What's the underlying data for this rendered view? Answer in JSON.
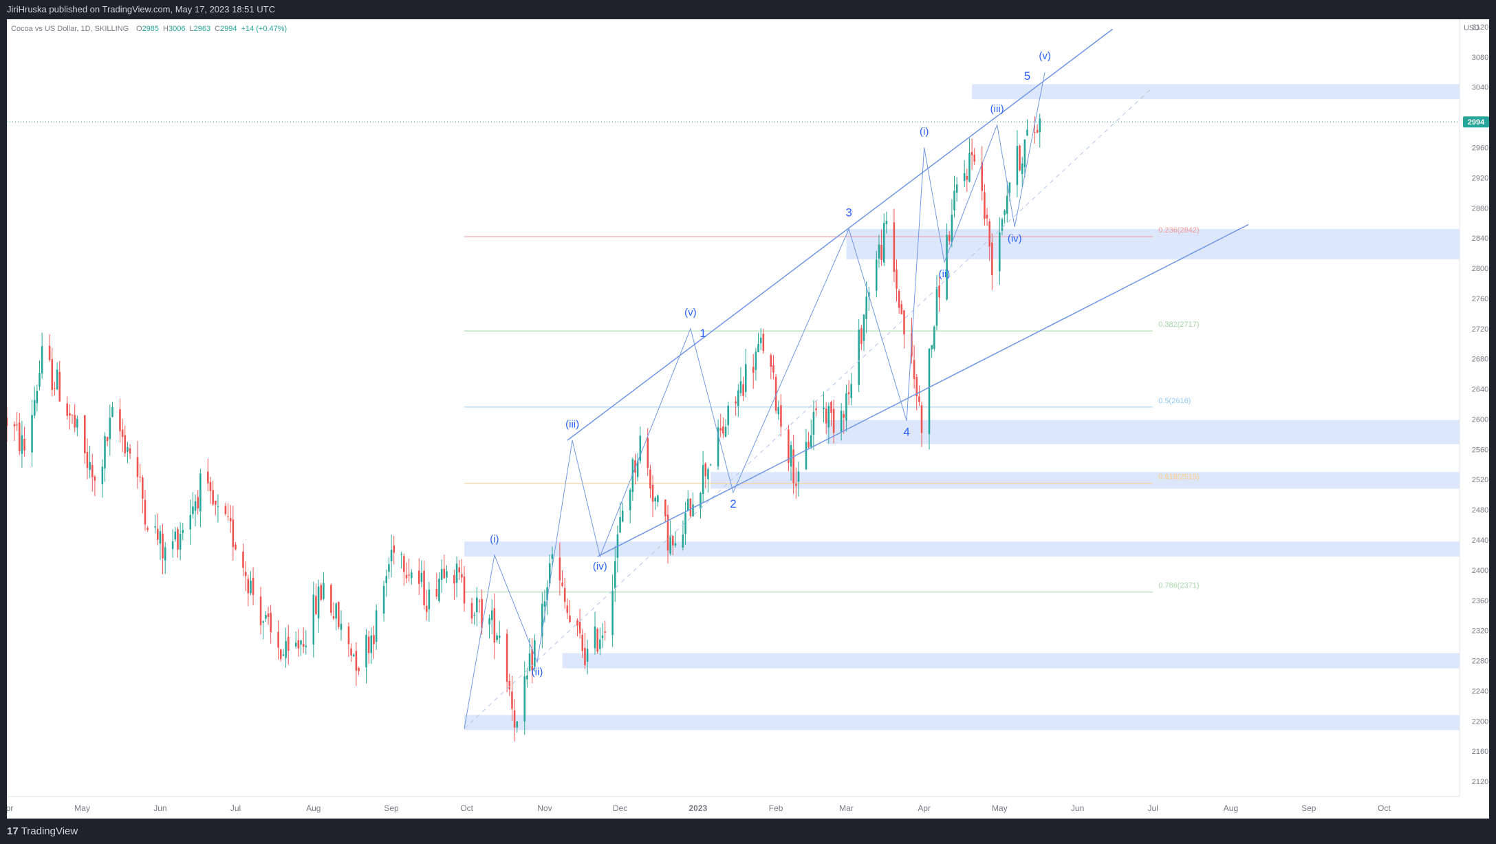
{
  "header": {
    "published_line": "JiriHruska published on TradingView.com, May 17, 2023 18:51 UTC"
  },
  "footer": {
    "logo_mark": "17",
    "logo_text": "TradingView"
  },
  "colors": {
    "background": "#ffffff",
    "up": "#26a69a",
    "down": "#ef5350",
    "wave_lines": "#6f96e6",
    "wave_labels": "#2962ff",
    "zone_fill": "#dde7fb",
    "price_tag": "#26a69a"
  },
  "chart_data": {
    "type": "candlestick",
    "symbol_line": {
      "symbol": "Cocoa vs US Dollar, 1D, SKILLING",
      "open_label": "O",
      "open": "2985",
      "high_label": "H",
      "high": "3006",
      "low_label": "L",
      "low": "2963",
      "close_label": "C",
      "close": "2994",
      "change": "+14 (+0.47%)"
    },
    "currency": "USD",
    "last_price": 2994,
    "last_price_label": "2994",
    "y_axis": {
      "min": 2100,
      "max": 3130,
      "ticks": [
        3120,
        3080,
        3040,
        2960,
        2920,
        2880,
        2840,
        2800,
        2760,
        2720,
        2680,
        2640,
        2600,
        2560,
        2520,
        2480,
        2440,
        2400,
        2360,
        2320,
        2280,
        2240,
        2200,
        2160,
        2120
      ]
    },
    "x_axis": {
      "start": "2022-04-01",
      "end": "2023-10-31",
      "ticks": [
        {
          "date": "2022-04-01",
          "label": "Apr"
        },
        {
          "date": "2022-05-01",
          "label": "May"
        },
        {
          "date": "2022-06-01",
          "label": "Jun"
        },
        {
          "date": "2022-07-01",
          "label": "Jul"
        },
        {
          "date": "2022-08-01",
          "label": "Aug"
        },
        {
          "date": "2022-09-01",
          "label": "Sep"
        },
        {
          "date": "2022-10-01",
          "label": "Oct"
        },
        {
          "date": "2022-11-01",
          "label": "Nov"
        },
        {
          "date": "2022-12-01",
          "label": "Dec"
        },
        {
          "date": "2023-01-01",
          "label": "2023"
        },
        {
          "date": "2023-02-01",
          "label": "Feb"
        },
        {
          "date": "2023-03-01",
          "label": "Mar"
        },
        {
          "date": "2023-04-01",
          "label": "Apr"
        },
        {
          "date": "2023-05-01",
          "label": "May"
        },
        {
          "date": "2023-06-01",
          "label": "Jun"
        },
        {
          "date": "2023-07-01",
          "label": "Jul"
        },
        {
          "date": "2023-08-01",
          "label": "Aug"
        },
        {
          "date": "2023-09-01",
          "label": "Sep"
        },
        {
          "date": "2023-10-01",
          "label": "Oct"
        }
      ]
    },
    "price_path": [
      {
        "date": "2022-04-01",
        "price": 2600
      },
      {
        "date": "2022-04-08",
        "price": 2560
      },
      {
        "date": "2022-04-15",
        "price": 2680
      },
      {
        "date": "2022-04-22",
        "price": 2640
      },
      {
        "date": "2022-04-29",
        "price": 2580
      },
      {
        "date": "2022-05-06",
        "price": 2510
      },
      {
        "date": "2022-05-13",
        "price": 2600
      },
      {
        "date": "2022-05-20",
        "price": 2560
      },
      {
        "date": "2022-05-27",
        "price": 2470
      },
      {
        "date": "2022-06-03",
        "price": 2420
      },
      {
        "date": "2022-06-10",
        "price": 2460
      },
      {
        "date": "2022-06-17",
        "price": 2510
      },
      {
        "date": "2022-06-24",
        "price": 2470
      },
      {
        "date": "2022-07-01",
        "price": 2440
      },
      {
        "date": "2022-07-08",
        "price": 2370
      },
      {
        "date": "2022-07-15",
        "price": 2310
      },
      {
        "date": "2022-07-22",
        "price": 2280
      },
      {
        "date": "2022-07-29",
        "price": 2320
      },
      {
        "date": "2022-08-05",
        "price": 2380
      },
      {
        "date": "2022-08-12",
        "price": 2320
      },
      {
        "date": "2022-08-19",
        "price": 2280
      },
      {
        "date": "2022-08-26",
        "price": 2330
      },
      {
        "date": "2022-09-02",
        "price": 2440
      },
      {
        "date": "2022-09-09",
        "price": 2400
      },
      {
        "date": "2022-09-16",
        "price": 2360
      },
      {
        "date": "2022-09-23",
        "price": 2420
      },
      {
        "date": "2022-09-30",
        "price": 2370
      },
      {
        "date": "2022-10-07",
        "price": 2340
      },
      {
        "date": "2022-10-14",
        "price": 2320
      },
      {
        "date": "2022-10-21",
        "price": 2190
      },
      {
        "date": "2022-10-28",
        "price": 2300
      },
      {
        "date": "2022-11-04",
        "price": 2415
      },
      {
        "date": "2022-11-11",
        "price": 2330
      },
      {
        "date": "2022-11-18",
        "price": 2285
      },
      {
        "date": "2022-11-25",
        "price": 2330
      },
      {
        "date": "2022-12-02",
        "price": 2480
      },
      {
        "date": "2022-12-09",
        "price": 2570
      },
      {
        "date": "2022-12-16",
        "price": 2480
      },
      {
        "date": "2022-12-23",
        "price": 2420
      },
      {
        "date": "2022-12-30",
        "price": 2500
      },
      {
        "date": "2023-01-06",
        "price": 2550
      },
      {
        "date": "2023-01-13",
        "price": 2600
      },
      {
        "date": "2023-01-20",
        "price": 2660
      },
      {
        "date": "2023-01-27",
        "price": 2700
      },
      {
        "date": "2023-02-03",
        "price": 2600
      },
      {
        "date": "2023-02-10",
        "price": 2510
      },
      {
        "date": "2023-02-17",
        "price": 2620
      },
      {
        "date": "2023-02-24",
        "price": 2600
      },
      {
        "date": "2023-03-03",
        "price": 2640
      },
      {
        "date": "2023-03-10",
        "price": 2780
      },
      {
        "date": "2023-03-17",
        "price": 2850
      },
      {
        "date": "2023-03-24",
        "price": 2720
      },
      {
        "date": "2023-03-31",
        "price": 2600
      },
      {
        "date": "2023-04-07",
        "price": 2780
      },
      {
        "date": "2023-04-14",
        "price": 2900
      },
      {
        "date": "2023-04-21",
        "price": 2960
      },
      {
        "date": "2023-04-28",
        "price": 2810
      },
      {
        "date": "2023-05-05",
        "price": 2920
      },
      {
        "date": "2023-05-12",
        "price": 2970
      },
      {
        "date": "2023-05-17",
        "price": 2994
      }
    ],
    "zones": [
      {
        "date_from": "2023-04-20",
        "date_to": "2023-10-31",
        "low": 3024,
        "high": 3044
      },
      {
        "date_from": "2023-03-01",
        "date_to": "2023-10-31",
        "low": 2812,
        "high": 2852
      },
      {
        "date_from": "2023-02-21",
        "date_to": "2023-10-31",
        "low": 2567,
        "high": 2599
      },
      {
        "date_from": "2023-01-06",
        "date_to": "2023-10-31",
        "low": 2508,
        "high": 2530
      },
      {
        "date_from": "2022-09-30",
        "date_to": "2023-10-31",
        "low": 2418,
        "high": 2438
      },
      {
        "date_from": "2022-11-08",
        "date_to": "2023-10-31",
        "low": 2270,
        "high": 2290
      },
      {
        "date_from": "2022-09-30",
        "date_to": "2023-10-31",
        "low": 2188,
        "high": 2208
      }
    ],
    "fibonacci": {
      "date_from": "2022-09-30",
      "date_to": "2023-07-01",
      "levels": [
        {
          "label": "0.236(2842)",
          "price": 2842,
          "color": "#ef9a9a"
        },
        {
          "label": "0.382(2717)",
          "price": 2717,
          "color": "#a5d6a7"
        },
        {
          "label": "0.5(2616)",
          "price": 2616,
          "color": "#90caf9"
        },
        {
          "label": "0.618(2515)",
          "price": 2515,
          "color": "#ffcc80"
        },
        {
          "label": "0.786(2371)",
          "price": 2371,
          "color": "#a5d6a7"
        }
      ]
    },
    "channel_lines": [
      {
        "from": {
          "date": "2022-11-10",
          "price": 2572
        },
        "to": {
          "date": "2023-06-15",
          "price": 3117
        }
      },
      {
        "from": {
          "date": "2022-11-22",
          "price": 2418
        },
        "to": {
          "date": "2023-08-08",
          "price": 2858
        }
      }
    ],
    "guide_line": {
      "from": {
        "date": "2022-09-30",
        "price": 2190
      },
      "to": {
        "date": "2023-07-01",
        "price": 3040
      }
    },
    "wave_path": [
      {
        "date": "2022-09-30",
        "price": 2190
      },
      {
        "date": "2022-10-12",
        "price": 2420
      },
      {
        "date": "2022-10-29",
        "price": 2278
      },
      {
        "date": "2022-11-12",
        "price": 2572
      },
      {
        "date": "2022-11-23",
        "price": 2418
      },
      {
        "date": "2022-12-29",
        "price": 2720
      },
      {
        "date": "2023-01-15",
        "price": 2503
      },
      {
        "date": "2023-03-02",
        "price": 2852
      },
      {
        "date": "2023-03-25",
        "price": 2598
      },
      {
        "date": "2023-04-01",
        "price": 2960
      },
      {
        "date": "2023-04-09",
        "price": 2808
      },
      {
        "date": "2023-04-30",
        "price": 2990
      },
      {
        "date": "2023-05-07",
        "price": 2855
      },
      {
        "date": "2023-05-19",
        "price": 3060
      }
    ],
    "wave_labels": [
      {
        "text": "(i)",
        "date": "2022-10-12",
        "price": 2437
      },
      {
        "text": "(ii)",
        "date": "2022-10-29",
        "price": 2261
      },
      {
        "text": "(iii)",
        "date": "2022-11-12",
        "price": 2589
      },
      {
        "text": "(iv)",
        "date": "2022-11-23",
        "price": 2401
      },
      {
        "text": "(v)",
        "date": "2022-12-29",
        "price": 2737
      },
      {
        "text": "1",
        "date": "2023-01-03",
        "price": 2709
      },
      {
        "text": "2",
        "date": "2023-01-15",
        "price": 2483
      },
      {
        "text": "3",
        "date": "2023-03-02",
        "price": 2869
      },
      {
        "text": "4",
        "date": "2023-03-25",
        "price": 2578
      },
      {
        "text": "(i)",
        "date": "2023-04-01",
        "price": 2977
      },
      {
        "text": "(ii)",
        "date": "2023-04-09",
        "price": 2788
      },
      {
        "text": "(iii)",
        "date": "2023-04-30",
        "price": 3007
      },
      {
        "text": "(iv)",
        "date": "2023-05-07",
        "price": 2835
      },
      {
        "text": "5",
        "date": "2023-05-12",
        "price": 3050
      },
      {
        "text": "(v)",
        "date": "2023-05-19",
        "price": 3077
      }
    ]
  }
}
